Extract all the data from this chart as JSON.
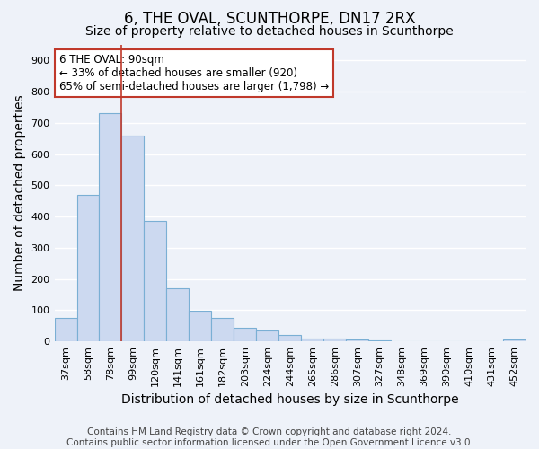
{
  "title": "6, THE OVAL, SCUNTHORPE, DN17 2RX",
  "subtitle": "Size of property relative to detached houses in Scunthorpe",
  "xlabel": "Distribution of detached houses by size in Scunthorpe",
  "ylabel": "Number of detached properties",
  "categories": [
    "37sqm",
    "58sqm",
    "78sqm",
    "99sqm",
    "120sqm",
    "141sqm",
    "161sqm",
    "182sqm",
    "203sqm",
    "224sqm",
    "244sqm",
    "265sqm",
    "286sqm",
    "307sqm",
    "327sqm",
    "348sqm",
    "369sqm",
    "390sqm",
    "410sqm",
    "431sqm",
    "452sqm"
  ],
  "values": [
    75,
    470,
    730,
    660,
    385,
    170,
    98,
    75,
    44,
    35,
    20,
    10,
    9,
    7,
    4,
    0,
    0,
    0,
    0,
    0,
    5
  ],
  "bar_color": "#ccd9f0",
  "bar_edge_color": "#7aafd4",
  "vline_x": 2.5,
  "vline_color": "#c0392b",
  "annotation_text": "6 THE OVAL: 90sqm\n← 33% of detached houses are smaller (920)\n65% of semi-detached houses are larger (1,798) →",
  "annotation_box_color": "white",
  "annotation_box_edge_color": "#c0392b",
  "ylim": [
    0,
    950
  ],
  "yticks": [
    0,
    100,
    200,
    300,
    400,
    500,
    600,
    700,
    800,
    900
  ],
  "footer1": "Contains HM Land Registry data © Crown copyright and database right 2024.",
  "footer2": "Contains public sector information licensed under the Open Government Licence v3.0.",
  "bg_color": "#eef2f9",
  "grid_color": "white",
  "title_fontsize": 12,
  "subtitle_fontsize": 10,
  "axis_label_fontsize": 10,
  "tick_fontsize": 8,
  "footer_fontsize": 7.5
}
